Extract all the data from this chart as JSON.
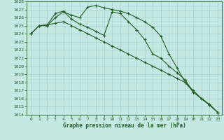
{
  "xlabel": "Graphe pression niveau de la mer (hPa)",
  "ylim": [
    1014,
    1028
  ],
  "xlim": [
    -0.5,
    23.5
  ],
  "yticks": [
    1014,
    1015,
    1016,
    1017,
    1018,
    1019,
    1020,
    1021,
    1022,
    1023,
    1024,
    1025,
    1026,
    1027,
    1028
  ],
  "xticks": [
    0,
    1,
    2,
    3,
    4,
    5,
    6,
    7,
    8,
    9,
    10,
    11,
    12,
    13,
    14,
    15,
    16,
    17,
    18,
    19,
    20,
    21,
    22,
    23
  ],
  "bg_color": "#c5e8e5",
  "grid_color": "#9ecbc7",
  "line_color": "#1f5e1f",
  "line1": [
    1024.0,
    1025.0,
    1025.0,
    1026.0,
    1026.7,
    1026.3,
    1026.0,
    1027.3,
    1027.5,
    1027.2,
    1027.0,
    1026.8,
    1026.5,
    1026.0,
    1025.5,
    1024.8,
    1023.7,
    1021.5,
    1019.8,
    1018.0,
    1017.0,
    1016.0,
    1015.2,
    1014.3
  ],
  "line2": [
    1024.0,
    1025.0,
    1025.1,
    1026.5,
    1026.8,
    1025.8,
    1025.2,
    1024.8,
    1024.3,
    1023.8,
    1026.7,
    1026.5,
    1025.5,
    1024.5,
    1023.3,
    1021.5,
    1021.0,
    1020.0,
    1019.2,
    1018.3,
    1016.8,
    1016.0,
    1015.2,
    1014.3
  ],
  "line3": [
    1024.0,
    1025.0,
    1025.1,
    1025.3,
    1025.5,
    1025.0,
    1024.5,
    1024.0,
    1023.5,
    1023.0,
    1022.5,
    1022.0,
    1021.5,
    1021.0,
    1020.5,
    1020.0,
    1019.5,
    1019.0,
    1018.5,
    1018.0,
    1016.8,
    1016.0,
    1015.3,
    1014.3
  ],
  "marker": "+",
  "markersize": 3,
  "linewidth": 0.8,
  "label_fontsize": 5.5,
  "tick_fontsize": 4.5,
  "xlabel_fontsize": 5.5
}
